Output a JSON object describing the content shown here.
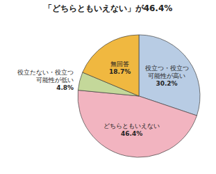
{
  "chart_data": {
    "type": "pie",
    "title": "「どちらともいえない」が46.4%",
    "categories": [
      "役立つ・役立つ\n可能性が高い",
      "どちらともいえない",
      "役立たない・役立つ\n可能性が低い",
      "無回答"
    ],
    "values": [
      30.2,
      46.4,
      4.8,
      18.7
    ],
    "value_labels": [
      "30.2%",
      "46.4%",
      "4.8%",
      "18.7%"
    ],
    "data_labels": true,
    "colors": [
      "#b8cce4",
      "#f2b4c0",
      "#c4d89a",
      "#f0b840"
    ]
  }
}
